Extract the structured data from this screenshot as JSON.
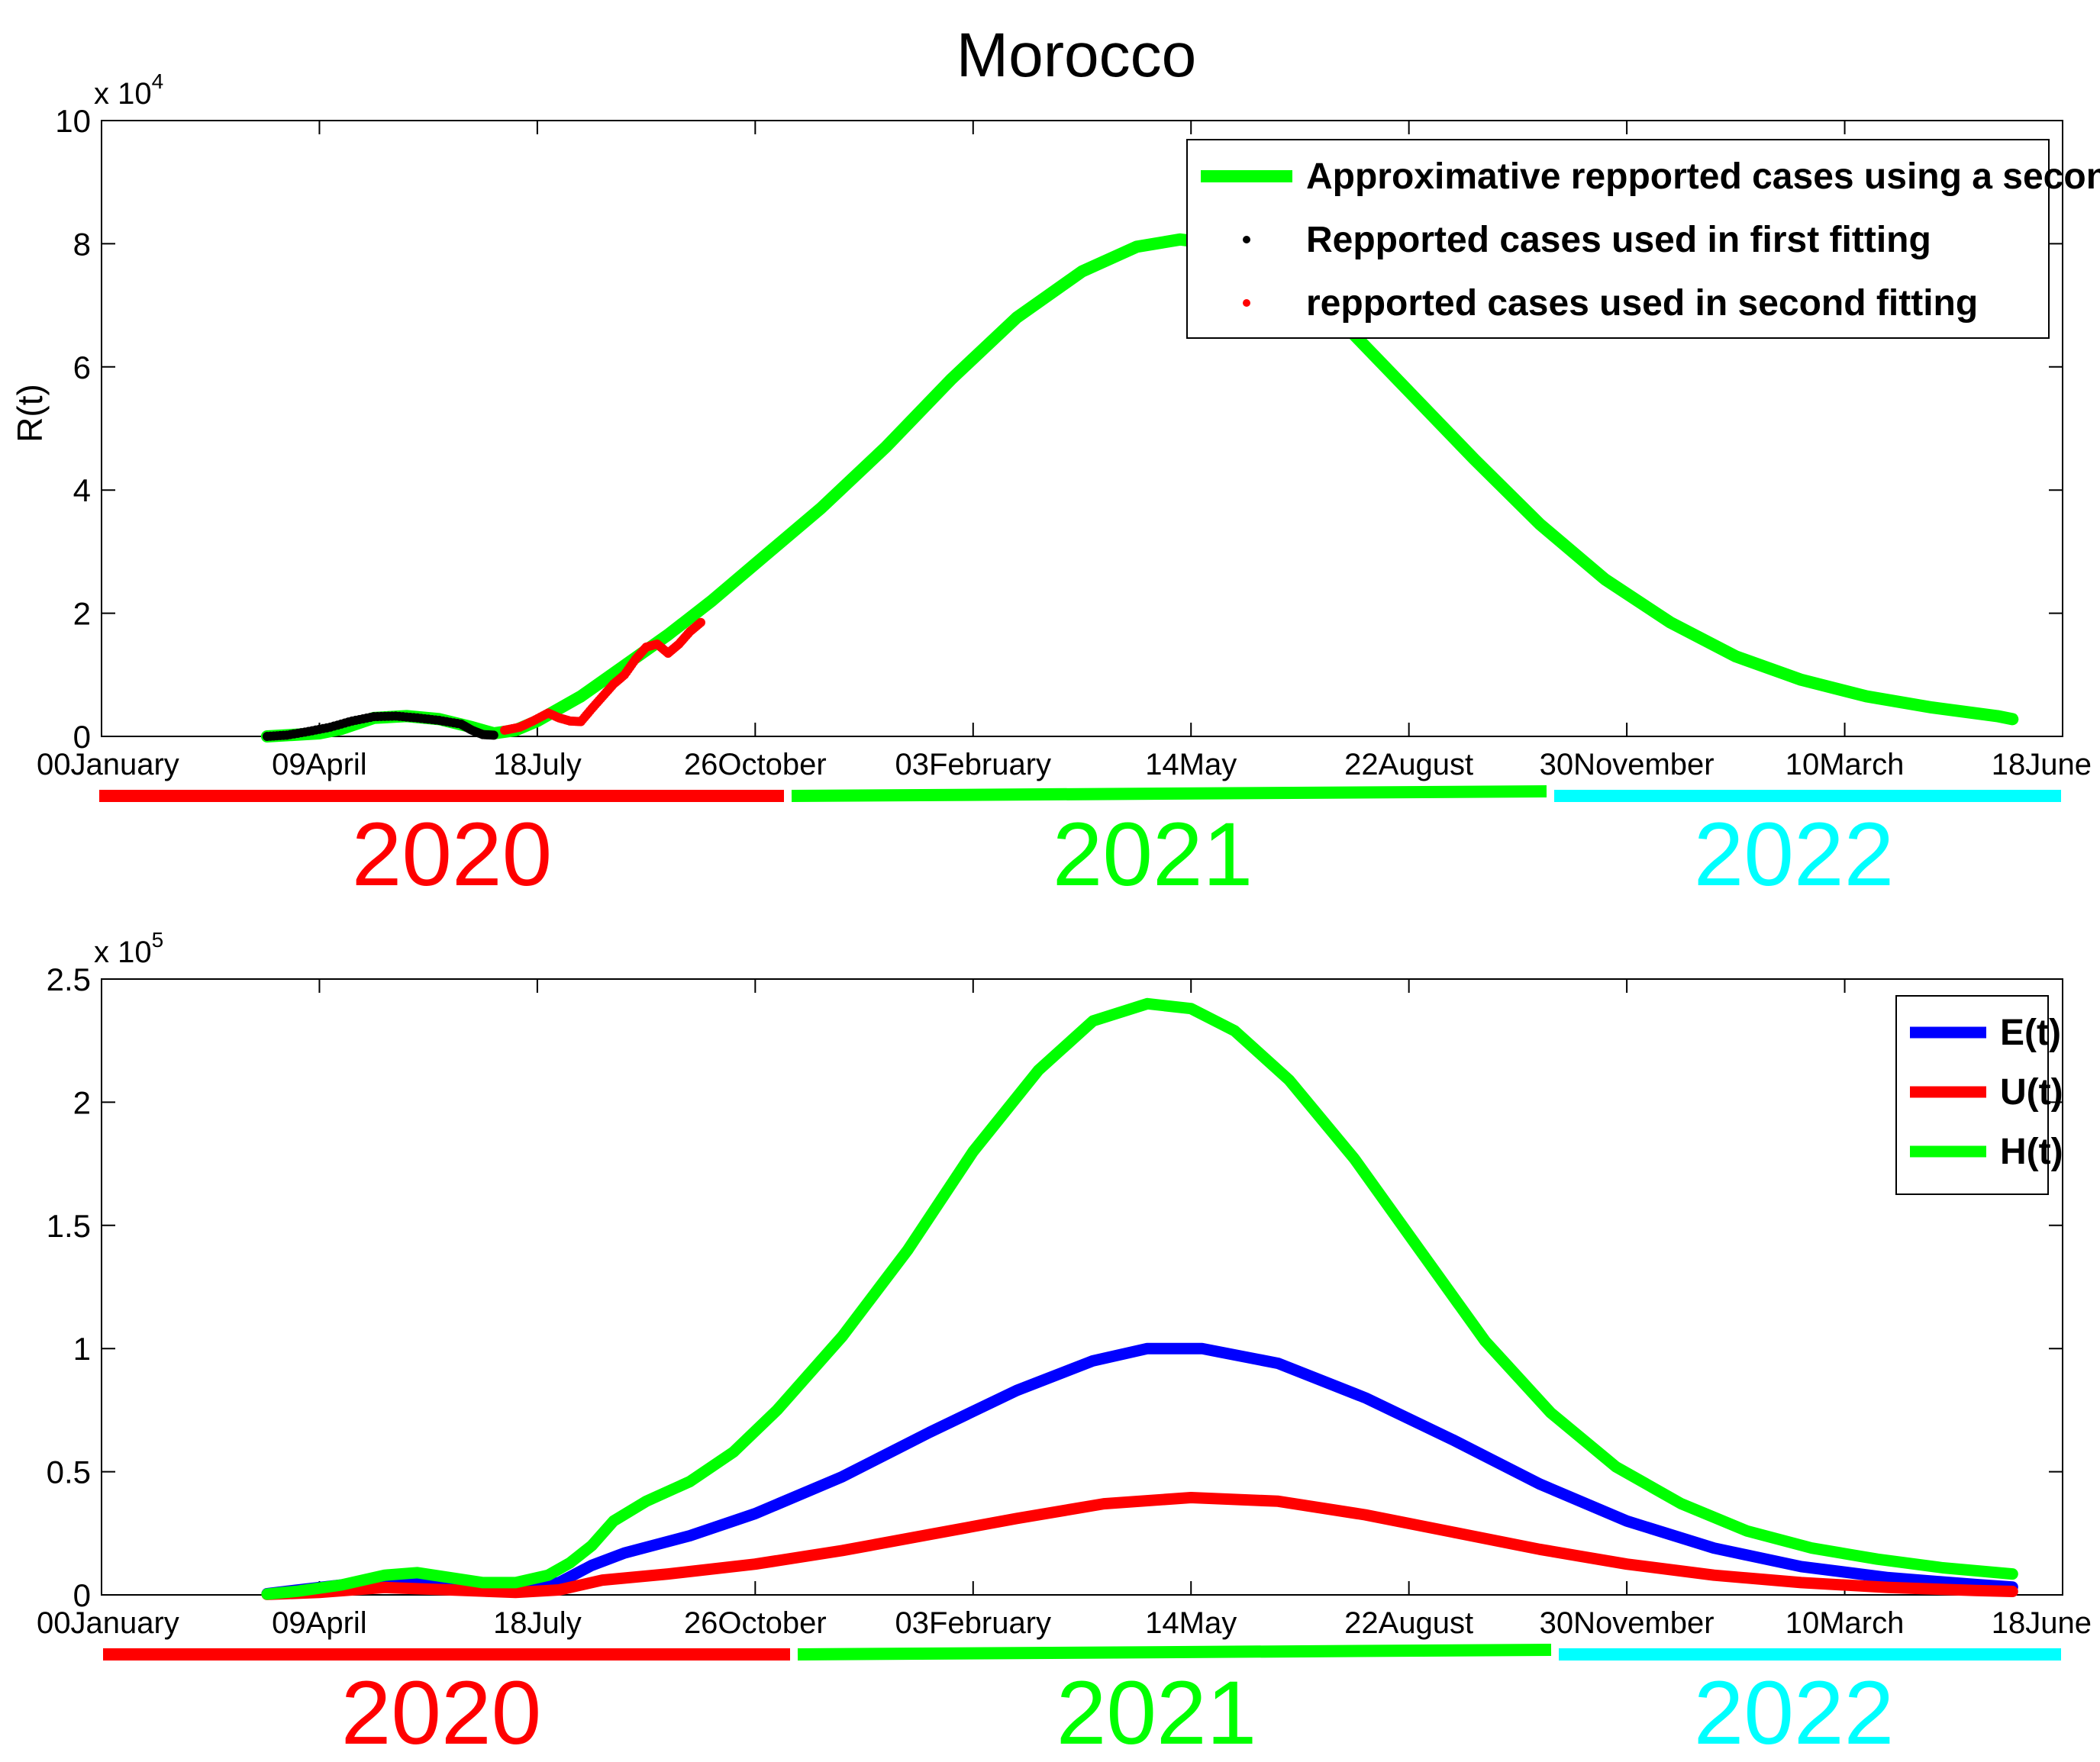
{
  "figure": {
    "title": "Morocco",
    "year_labels": [
      {
        "text": "2020",
        "color": "#ff0000"
      },
      {
        "text": "2021",
        "color": "#00ff00"
      },
      {
        "text": "2022",
        "color": "#00ffff"
      }
    ]
  },
  "chart_data": [
    {
      "type": "line",
      "ylabel": "R(t)",
      "xlabel": "",
      "y_multiplier": "x 10",
      "y_multiplier_exp": "4",
      "ylim": [
        0,
        100000
      ],
      "y_ticks": [
        0,
        20000,
        40000,
        60000,
        80000,
        100000
      ],
      "y_tick_labels": [
        "0",
        "2",
        "4",
        "6",
        "8",
        "10"
      ],
      "xlim": [
        0,
        900
      ],
      "x_ticks": [
        0,
        100,
        200,
        300,
        400,
        500,
        600,
        700,
        800,
        900
      ],
      "x_tick_labels": [
        "00January",
        "09April",
        "18July",
        "26October",
        "03February",
        "14May",
        "22August",
        "30November",
        "10March",
        "18June"
      ],
      "legend_position": "top-right",
      "series": [
        {
          "name": "Approximative repported cases using a second fitting",
          "color": "#00ff00",
          "style": "line",
          "points": [
            [
              76,
              0
            ],
            [
              100,
              500
            ],
            [
              110,
              1200
            ],
            [
              125,
              3000
            ],
            [
              140,
              3300
            ],
            [
              155,
              2800
            ],
            [
              170,
              1500
            ],
            [
              180,
              500
            ],
            [
              190,
              1000
            ],
            [
              200,
              2500
            ],
            [
              220,
              6500
            ],
            [
              240,
              11500
            ],
            [
              260,
              16500
            ],
            [
              280,
              22000
            ],
            [
              300,
              28000
            ],
            [
              330,
              37000
            ],
            [
              360,
              47000
            ],
            [
              390,
              58000
            ],
            [
              420,
              68000
            ],
            [
              450,
              75500
            ],
            [
              475,
              79500
            ],
            [
              495,
              80700
            ],
            [
              515,
              79800
            ],
            [
              540,
              75500
            ],
            [
              570,
              67000
            ],
            [
              600,
              56000
            ],
            [
              630,
              45000
            ],
            [
              660,
              34500
            ],
            [
              690,
              25500
            ],
            [
              720,
              18500
            ],
            [
              750,
              13000
            ],
            [
              780,
              9200
            ],
            [
              810,
              6500
            ],
            [
              840,
              4700
            ],
            [
              870,
              3300
            ],
            [
              877,
              2800
            ]
          ]
        },
        {
          "name": "Repported cases used in first fitting",
          "color": "#000000",
          "style": "dots",
          "points": [
            [
              76,
              0
            ],
            [
              85,
              200
            ],
            [
              95,
              800
            ],
            [
              105,
              1500
            ],
            [
              115,
              2500
            ],
            [
              125,
              3200
            ],
            [
              135,
              3300
            ],
            [
              145,
              3000
            ],
            [
              155,
              2600
            ],
            [
              165,
              2000
            ],
            [
              170,
              1000
            ],
            [
              175,
              300
            ],
            [
              180,
              200
            ]
          ]
        },
        {
          "name": "repported cases used in second fitting",
          "color": "#ff0000",
          "style": "dots",
          "points": [
            [
              185,
              1000
            ],
            [
              192,
              1500
            ],
            [
              198,
              2500
            ],
            [
              205,
              3800
            ],
            [
              210,
              3000
            ],
            [
              215,
              2500
            ],
            [
              220,
              2400
            ],
            [
              225,
              4500
            ],
            [
              230,
              6500
            ],
            [
              235,
              8500
            ],
            [
              240,
              10000
            ],
            [
              245,
              12500
            ],
            [
              250,
              14500
            ],
            [
              255,
              15000
            ],
            [
              260,
              13500
            ],
            [
              265,
              15000
            ],
            [
              270,
              17000
            ],
            [
              275,
              18500
            ]
          ]
        }
      ]
    },
    {
      "type": "line",
      "ylabel": "",
      "xlabel": "",
      "y_multiplier": "x 10",
      "y_multiplier_exp": "5",
      "ylim": [
        0,
        250000
      ],
      "y_ticks": [
        0,
        50000,
        100000,
        150000,
        200000,
        250000
      ],
      "y_tick_labels": [
        "0",
        "0.5",
        "1",
        "1.5",
        "2",
        "2.5"
      ],
      "xlim": [
        0,
        900
      ],
      "x_ticks": [
        0,
        100,
        200,
        300,
        400,
        500,
        600,
        700,
        800,
        900
      ],
      "x_tick_labels": [
        "00January",
        "09April",
        "18July",
        "26October",
        "03February",
        "14May",
        "22August",
        "30November",
        "10March",
        "18June"
      ],
      "legend_position": "top-right",
      "series": [
        {
          "name": "E(t)",
          "color": "#0000ff",
          "points": [
            [
              76,
              500
            ],
            [
              100,
              3000
            ],
            [
              130,
              6000
            ],
            [
              160,
              4000
            ],
            [
              190,
              2000
            ],
            [
              210,
              5000
            ],
            [
              225,
              12000
            ],
            [
              240,
              17000
            ],
            [
              270,
              24000
            ],
            [
              300,
              33000
            ],
            [
              340,
              48000
            ],
            [
              380,
              66000
            ],
            [
              420,
              83000
            ],
            [
              455,
              95000
            ],
            [
              480,
              100000
            ],
            [
              505,
              100000
            ],
            [
              540,
              94000
            ],
            [
              580,
              80000
            ],
            [
              620,
              63000
            ],
            [
              660,
              45000
            ],
            [
              700,
              30000
            ],
            [
              740,
              19000
            ],
            [
              780,
              11500
            ],
            [
              820,
              7000
            ],
            [
              860,
              4200
            ],
            [
              877,
              3200
            ]
          ]
        },
        {
          "name": "U(t)",
          "color": "#ff0000",
          "points": [
            [
              76,
              200
            ],
            [
              100,
              1000
            ],
            [
              130,
              3000
            ],
            [
              160,
              2000
            ],
            [
              190,
              1000
            ],
            [
              210,
              2000
            ],
            [
              230,
              6000
            ],
            [
              260,
              8500
            ],
            [
              300,
              12500
            ],
            [
              340,
              18000
            ],
            [
              380,
              24500
            ],
            [
              420,
              31000
            ],
            [
              460,
              37000
            ],
            [
              500,
              39500
            ],
            [
              540,
              38000
            ],
            [
              580,
              32500
            ],
            [
              620,
              25500
            ],
            [
              660,
              18500
            ],
            [
              700,
              12500
            ],
            [
              740,
              8000
            ],
            [
              780,
              5000
            ],
            [
              820,
              3000
            ],
            [
              860,
              1800
            ],
            [
              877,
              1400
            ]
          ]
        },
        {
          "name": "H(t)",
          "color": "#00ff00",
          "points": [
            [
              76,
              300
            ],
            [
              90,
              1500
            ],
            [
              110,
              4000
            ],
            [
              130,
              8000
            ],
            [
              145,
              9000
            ],
            [
              160,
              7000
            ],
            [
              175,
              5000
            ],
            [
              190,
              5000
            ],
            [
              205,
              8000
            ],
            [
              215,
              13000
            ],
            [
              225,
              20000
            ],
            [
              235,
              30000
            ],
            [
              250,
              38000
            ],
            [
              270,
              46000
            ],
            [
              290,
              58000
            ],
            [
              310,
              75000
            ],
            [
              340,
              105000
            ],
            [
              370,
              140000
            ],
            [
              400,
              180000
            ],
            [
              430,
              213000
            ],
            [
              455,
              233000
            ],
            [
              480,
              240000
            ],
            [
              500,
              238000
            ],
            [
              520,
              229000
            ],
            [
              545,
              209000
            ],
            [
              575,
              177000
            ],
            [
              605,
              140000
            ],
            [
              635,
              103000
            ],
            [
              665,
              74000
            ],
            [
              695,
              52000
            ],
            [
              725,
              37000
            ],
            [
              755,
              26000
            ],
            [
              785,
              19000
            ],
            [
              815,
              14500
            ],
            [
              845,
              11000
            ],
            [
              877,
              8500
            ]
          ]
        }
      ]
    }
  ]
}
